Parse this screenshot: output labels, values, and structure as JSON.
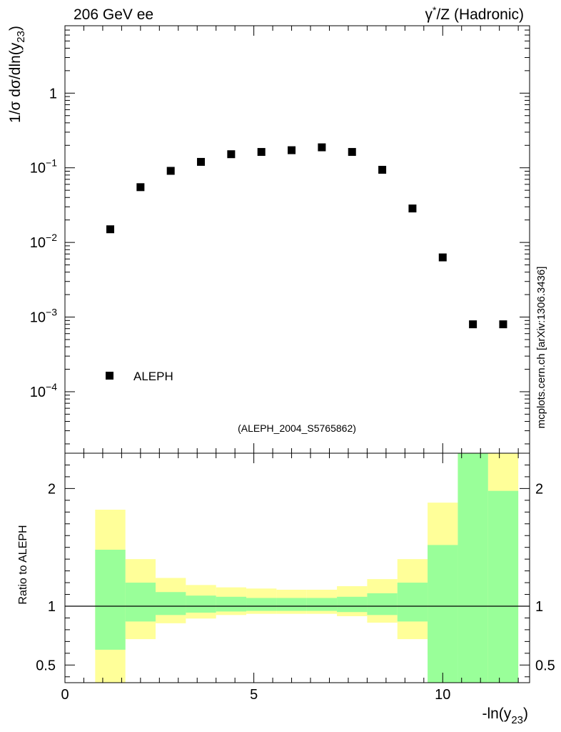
{
  "header": {
    "left_label": "206 GeV ee",
    "right_label_prefix": "γ",
    "right_label_star": "*",
    "right_label_suffix": "/Z (Hadronic)"
  },
  "watermark": "mcplots.cern.ch [arXiv:1306.3436]",
  "analysis_label": "(ALEPH_2004_S5765862)",
  "colors": {
    "inner_band": "#99ff99",
    "outer_band": "#ffff99",
    "marker": "#000000",
    "analysis_label": "#999999"
  },
  "chart_data": [
    {
      "type": "scatter",
      "name": "main",
      "ylabel_prefix": "1/σ  dσ/dln(y",
      "ylabel_sub": "23",
      "ylabel_suffix": ")",
      "yscale": "log",
      "ylim": [
        1.5e-05,
        8
      ],
      "xlim": [
        0,
        12.3
      ],
      "ytick_labels": [
        {
          "value": 1,
          "base": "1",
          "exp": ""
        },
        {
          "value": 0.1,
          "base": "10",
          "exp": "−1"
        },
        {
          "value": 0.01,
          "base": "10",
          "exp": "−2"
        },
        {
          "value": 0.001,
          "base": "10",
          "exp": "−3"
        },
        {
          "value": 0.0001,
          "base": "10",
          "exp": "−4"
        }
      ],
      "legend": {
        "label": "ALEPH",
        "position": "bottom-left"
      },
      "series": [
        {
          "name": "ALEPH",
          "marker": "square",
          "x": [
            1.2,
            2.0,
            2.8,
            3.6,
            4.4,
            5.2,
            6.0,
            6.8,
            7.6,
            8.4,
            9.2,
            10.0,
            10.8,
            11.6
          ],
          "y": [
            0.015,
            0.055,
            0.091,
            0.12,
            0.152,
            0.163,
            0.172,
            0.188,
            0.163,
            0.094,
            0.0285,
            0.0063,
            0.0008,
            0.0008
          ]
        }
      ]
    },
    {
      "type": "area",
      "name": "ratio",
      "ylabel": "Ratio to ALEPH",
      "xlabel_prefix": "-ln(y",
      "xlabel_sub": "23",
      "xlabel_suffix": ")",
      "ylim": [
        0.35,
        2.3
      ],
      "xlim": [
        0,
        12.3
      ],
      "xticks": [
        0,
        5,
        10
      ],
      "xtick_labels": [
        "0",
        "5",
        "10"
      ],
      "yticks": [
        0.5,
        1,
        2
      ],
      "ytick_labels": [
        "0.5",
        "1",
        "2"
      ],
      "reference_line": 1,
      "bin_edges": [
        0.8,
        1.6,
        2.4,
        3.2,
        4.0,
        4.8,
        5.6,
        6.4,
        7.2,
        8.0,
        8.8,
        9.6,
        10.4,
        11.2,
        12.0
      ],
      "series": [
        {
          "name": "Total uncertainty",
          "color": "#ffff99",
          "lower": [
            0.3,
            0.72,
            0.855,
            0.895,
            0.925,
            0.935,
            0.935,
            0.935,
            0.915,
            0.86,
            0.72,
            0.59,
            0.3,
            0.3
          ],
          "upper": [
            1.82,
            1.4,
            1.24,
            1.18,
            1.16,
            1.15,
            1.14,
            1.14,
            1.17,
            1.23,
            1.4,
            1.88,
            2.4,
            2.4
          ]
        },
        {
          "name": "Statistical uncertainty",
          "color": "#99ff99",
          "lower": [
            0.63,
            0.87,
            0.925,
            0.945,
            0.955,
            0.96,
            0.96,
            0.96,
            0.95,
            0.925,
            0.87,
            0.3,
            0.3,
            0.3
          ],
          "upper": [
            1.48,
            1.2,
            1.12,
            1.09,
            1.08,
            1.07,
            1.07,
            1.07,
            1.08,
            1.11,
            1.2,
            1.52,
            2.4,
            1.98
          ]
        }
      ]
    }
  ]
}
